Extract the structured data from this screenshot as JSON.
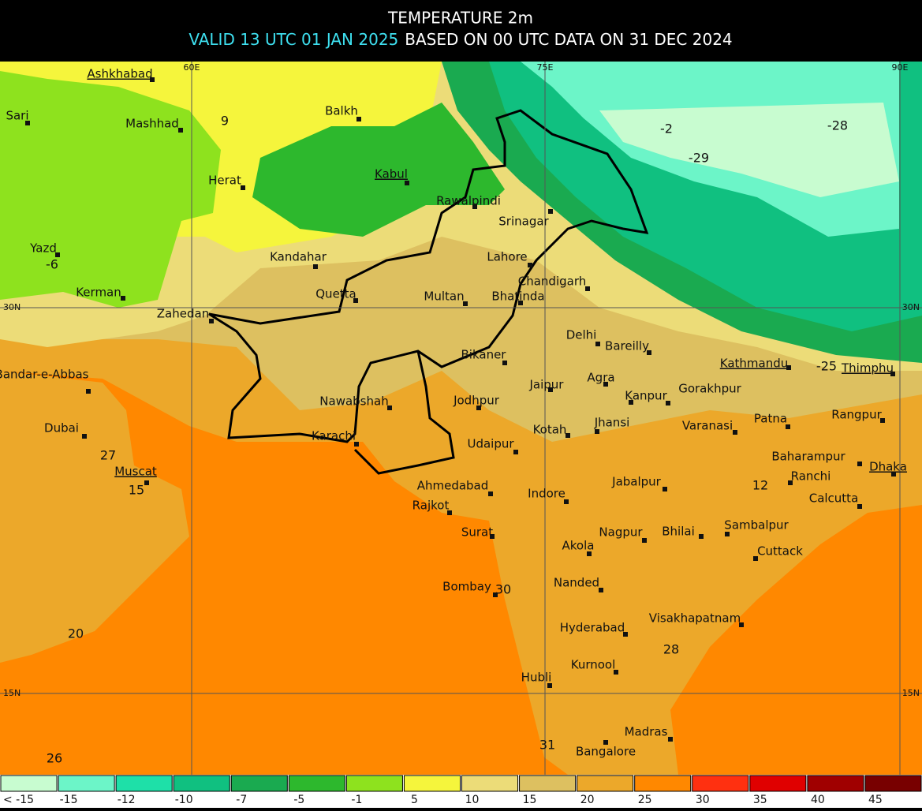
{
  "header": {
    "title": "TEMPERATURE 2m",
    "valid": "VALID 13 UTC 01 JAN 2025",
    "based": "BASED ON 00 UTC DATA ON 31 DEC 2024"
  },
  "graticule": {
    "lon": [
      "60E",
      "75E",
      "90E"
    ],
    "lat": [
      "30N",
      "15N"
    ]
  },
  "cities": [
    "Ashkhabad",
    "Sari",
    "Mashhad",
    "Balkh",
    "Herat",
    "Kabul",
    "Rawalpindi",
    "Srinagar",
    "Yazd",
    "Kandahar",
    "Lahore",
    "Chandigarh",
    "Kerman",
    "Quetta",
    "Multan",
    "Bhatinda",
    "Zahedan",
    "Delhi",
    "Bareilly",
    "Bikaner",
    "Kathmandu",
    "Thimphu",
    "Bandar-e-Abbas",
    "Jaipur",
    "Agra",
    "Gorakhpur",
    "Kanpur",
    "Nawabshah",
    "Jodhpur",
    "Rangpur",
    "Patna",
    "Dubai",
    "Jhansi",
    "Varanasi",
    "Kotah",
    "Karachi",
    "Udaipur",
    "Baharampur",
    "Muscat",
    "Dhaka",
    "Ranchi",
    "Ahmedabad",
    "Indore",
    "Jabalpur",
    "Calcutta",
    "Rajkot",
    "Surat",
    "Nagpur",
    "Bhilai",
    "Sambalpur",
    "Akola",
    "Cuttack",
    "Nanded",
    "Bombay",
    "Hyderabad",
    "Visakhapatnam",
    "Kurnool",
    "Hubli",
    "Madras",
    "Bangalore"
  ],
  "values": [
    9,
    -6,
    -2,
    -28,
    -29,
    -25,
    27,
    15,
    12,
    20,
    30,
    28,
    31,
    26
  ],
  "legend": {
    "labels": [
      "< -15",
      "-15",
      "-12",
      "-10",
      "-7",
      "-5",
      "-1",
      "5",
      "10",
      "15",
      "20",
      "25",
      "30",
      "35",
      "40",
      "45"
    ],
    "colors": [
      "#c8fcd0",
      "#6cf5c8",
      "#1ee0a8",
      "#10c080",
      "#1aaa50",
      "#2db82d",
      "#8ee21e",
      "#f5f53c",
      "#ecdc78",
      "#ddc060",
      "#eca82a",
      "#ff8800",
      "#ff3010",
      "#e00000",
      "#a00000",
      "#780000"
    ]
  }
}
